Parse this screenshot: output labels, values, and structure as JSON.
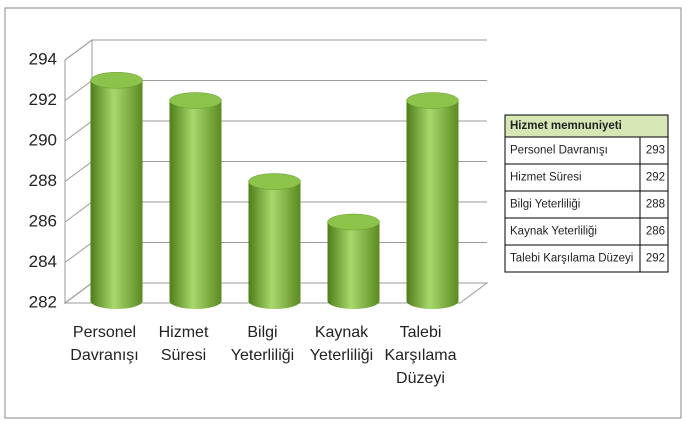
{
  "chart_data": {
    "type": "bar",
    "categories": [
      "Personel Davranışı",
      "Hizmet Süresi",
      "Bilgi Yeterliliği",
      "Kaynak Yeterliliği",
      "Talebi Karşılama Düzeyi"
    ],
    "series": [
      {
        "name": "Hizmet memnuniyeti",
        "color": "#7fb23a",
        "values": [
          293,
          292,
          288,
          286,
          292
        ]
      }
    ],
    "ylim": [
      282,
      294
    ],
    "yticks": [
      282,
      284,
      286,
      288,
      290,
      292,
      294
    ],
    "grid": true,
    "legend": "right"
  }
}
